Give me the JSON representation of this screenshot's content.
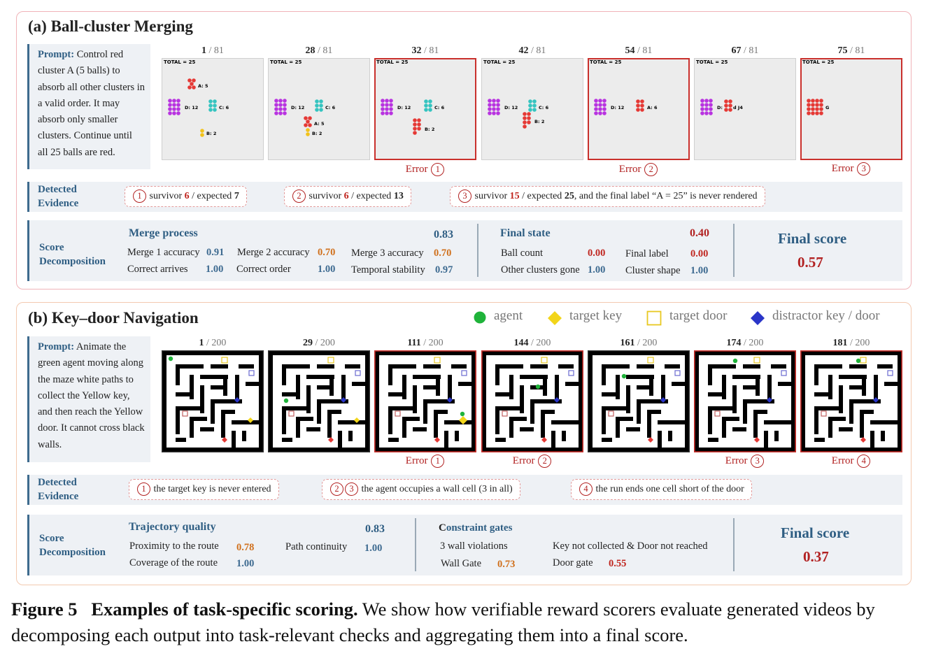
{
  "panel_a": {
    "title": "(a) Ball-cluster Merging",
    "prompt_label": "Prompt:",
    "prompt_text": "Control red cluster A (5 balls) to absorb all other clusters in a valid order. It may absorb only smaller clusters. Continue until all 25 balls are red.",
    "frames": [
      {
        "num": "1",
        "total": " / 81",
        "error": "",
        "error_num": ""
      },
      {
        "num": "28",
        "total": " / 81",
        "error": "",
        "error_num": ""
      },
      {
        "num": "32",
        "total": " / 81",
        "error": "Error",
        "error_num": "1"
      },
      {
        "num": "42",
        "total": " / 81",
        "error": "",
        "error_num": ""
      },
      {
        "num": "54",
        "total": " / 81",
        "error": "Error",
        "error_num": "2"
      },
      {
        "num": "67",
        "total": " / 81",
        "error": "",
        "error_num": ""
      },
      {
        "num": "75",
        "total": " / 81",
        "error": "Error",
        "error_num": "3"
      }
    ],
    "frame_labels": {
      "total": "TOTAL = 25",
      "f1": {
        "a": "A: 5",
        "d": "D: 12",
        "c": "C: 6",
        "b": "B: 2"
      },
      "f2": {
        "a": "A: 5",
        "d": "D: 12",
        "c": "C: 6",
        "b": "B: 2"
      },
      "f3": {
        "d": "D: 12",
        "c": "C: 6",
        "b": "B: 2"
      },
      "f4": {
        "d": "D: 12",
        "c": "C: 6",
        "b": "B: 2"
      },
      "f5": {
        "d": "D: 12",
        "a": "A: 6"
      },
      "f6": {
        "d": "D:",
        "a": "d J4"
      },
      "f7": {
        "a": "G"
      }
    },
    "evidence_label_1": "Detected",
    "evidence_label_2": "Evidence",
    "evidence": [
      {
        "num": "1",
        "pre": "survivor ",
        "v1": "6",
        "mid": " / expected ",
        "v2": "7",
        "post": ""
      },
      {
        "num": "2",
        "pre": "survivor ",
        "v1": "6",
        "mid": " / expected ",
        "v2": "13",
        "post": ""
      },
      {
        "num": "3",
        "pre": "survivor ",
        "v1": "15",
        "mid": " / expected ",
        "v2": "25",
        "post": ", and the final label “A = 25” is never rendered"
      }
    ],
    "score_label_1": "Score",
    "score_label_2": "Decomposition",
    "merge_process": {
      "title": "Merge process",
      "value": "0.83",
      "items": [
        {
          "label": "Merge 1 accuracy",
          "value": "0.91"
        },
        {
          "label": "Merge 2 accuracy",
          "value": "0.70"
        },
        {
          "label": "Merge 3 accuracy",
          "value": "0.70"
        },
        {
          "label": "Correct arrives",
          "value": "1.00"
        },
        {
          "label": "Correct order",
          "value": "1.00"
        },
        {
          "label": "Temporal stability",
          "value": "0.97"
        }
      ]
    },
    "final_state": {
      "title": "Final state",
      "value": "0.40",
      "items": [
        {
          "label": "Ball count",
          "value": "0.00"
        },
        {
          "label": "Final label",
          "value": "0.00"
        },
        {
          "label": "Other clusters gone",
          "value": "1.00"
        },
        {
          "label": "Cluster shape",
          "value": "1.00"
        }
      ]
    },
    "final_score": {
      "title": "Final score",
      "value": "0.57"
    }
  },
  "panel_b": {
    "title": "(b) Key–door Navigation",
    "legend": [
      {
        "label": "agent",
        "icon": "green-circle",
        "color": "#1fb33a"
      },
      {
        "label": "target key",
        "icon": "yellow-diamond",
        "color": "#f2d51a"
      },
      {
        "label": "target door",
        "icon": "yellow-square-outline",
        "color": "#e8c820"
      },
      {
        "label": "distractor key / door",
        "icon": "blue-diamond",
        "color": "#2a35c8"
      }
    ],
    "prompt_label": "Prompt:",
    "prompt_text": "Animate the green agent moving along the maze white paths to collect the Yellow key, and then reach the Yellow door. It cannot cross black walls.",
    "frames": [
      {
        "num": "1",
        "total": " / 200",
        "error": "",
        "error_num": ""
      },
      {
        "num": "29",
        "total": " / 200",
        "error": "",
        "error_num": ""
      },
      {
        "num": "111",
        "total": " / 200",
        "error": "Error",
        "error_num": "1"
      },
      {
        "num": "144",
        "total": " / 200",
        "error": "Error",
        "error_num": "2"
      },
      {
        "num": "161",
        "total": " / 200",
        "error": "",
        "error_num": ""
      },
      {
        "num": "174",
        "total": " / 200",
        "error": "Error",
        "error_num": "3"
      },
      {
        "num": "181",
        "total": " / 200",
        "error": "Error",
        "error_num": "4"
      }
    ],
    "evidence_label_1": "Detected",
    "evidence_label_2": "Evidence",
    "evidence": [
      {
        "nums": [
          "1"
        ],
        "text": "the target key is never entered"
      },
      {
        "nums": [
          "2",
          "3"
        ],
        "text": "the agent occupies a wall cell (3 in all)"
      },
      {
        "nums": [
          "4"
        ],
        "text": "the run ends one cell short of the door"
      }
    ],
    "score_label_1": "Score",
    "score_label_2": "Decomposition",
    "trajectory": {
      "title": "Trajectory quality",
      "value": "0.83",
      "items": [
        {
          "label": "Proximity to the route",
          "value": "0.78"
        },
        {
          "label": "Path continuity",
          "value": "1.00"
        },
        {
          "label": "Coverage of the route",
          "value": "1.00"
        }
      ]
    },
    "constraints": {
      "title_c": "C",
      "title_rest": "onstraint gates",
      "violations": "3 wall violations",
      "missed": "Key not collected & Door not reached",
      "items": [
        {
          "label": "Wall Gate",
          "value": "0.73"
        },
        {
          "label": "Door gate",
          "value": "0.55"
        }
      ]
    },
    "final_score": {
      "title": "Final score",
      "value": "0.37"
    }
  },
  "caption": {
    "fig": "Figure 5",
    "bold": "Examples of task-specific scoring.",
    "text": " We show how verifiable reward scorers evaluate generated videos by decomposing each output into task-relevant checks and aggregating them into a final score."
  }
}
